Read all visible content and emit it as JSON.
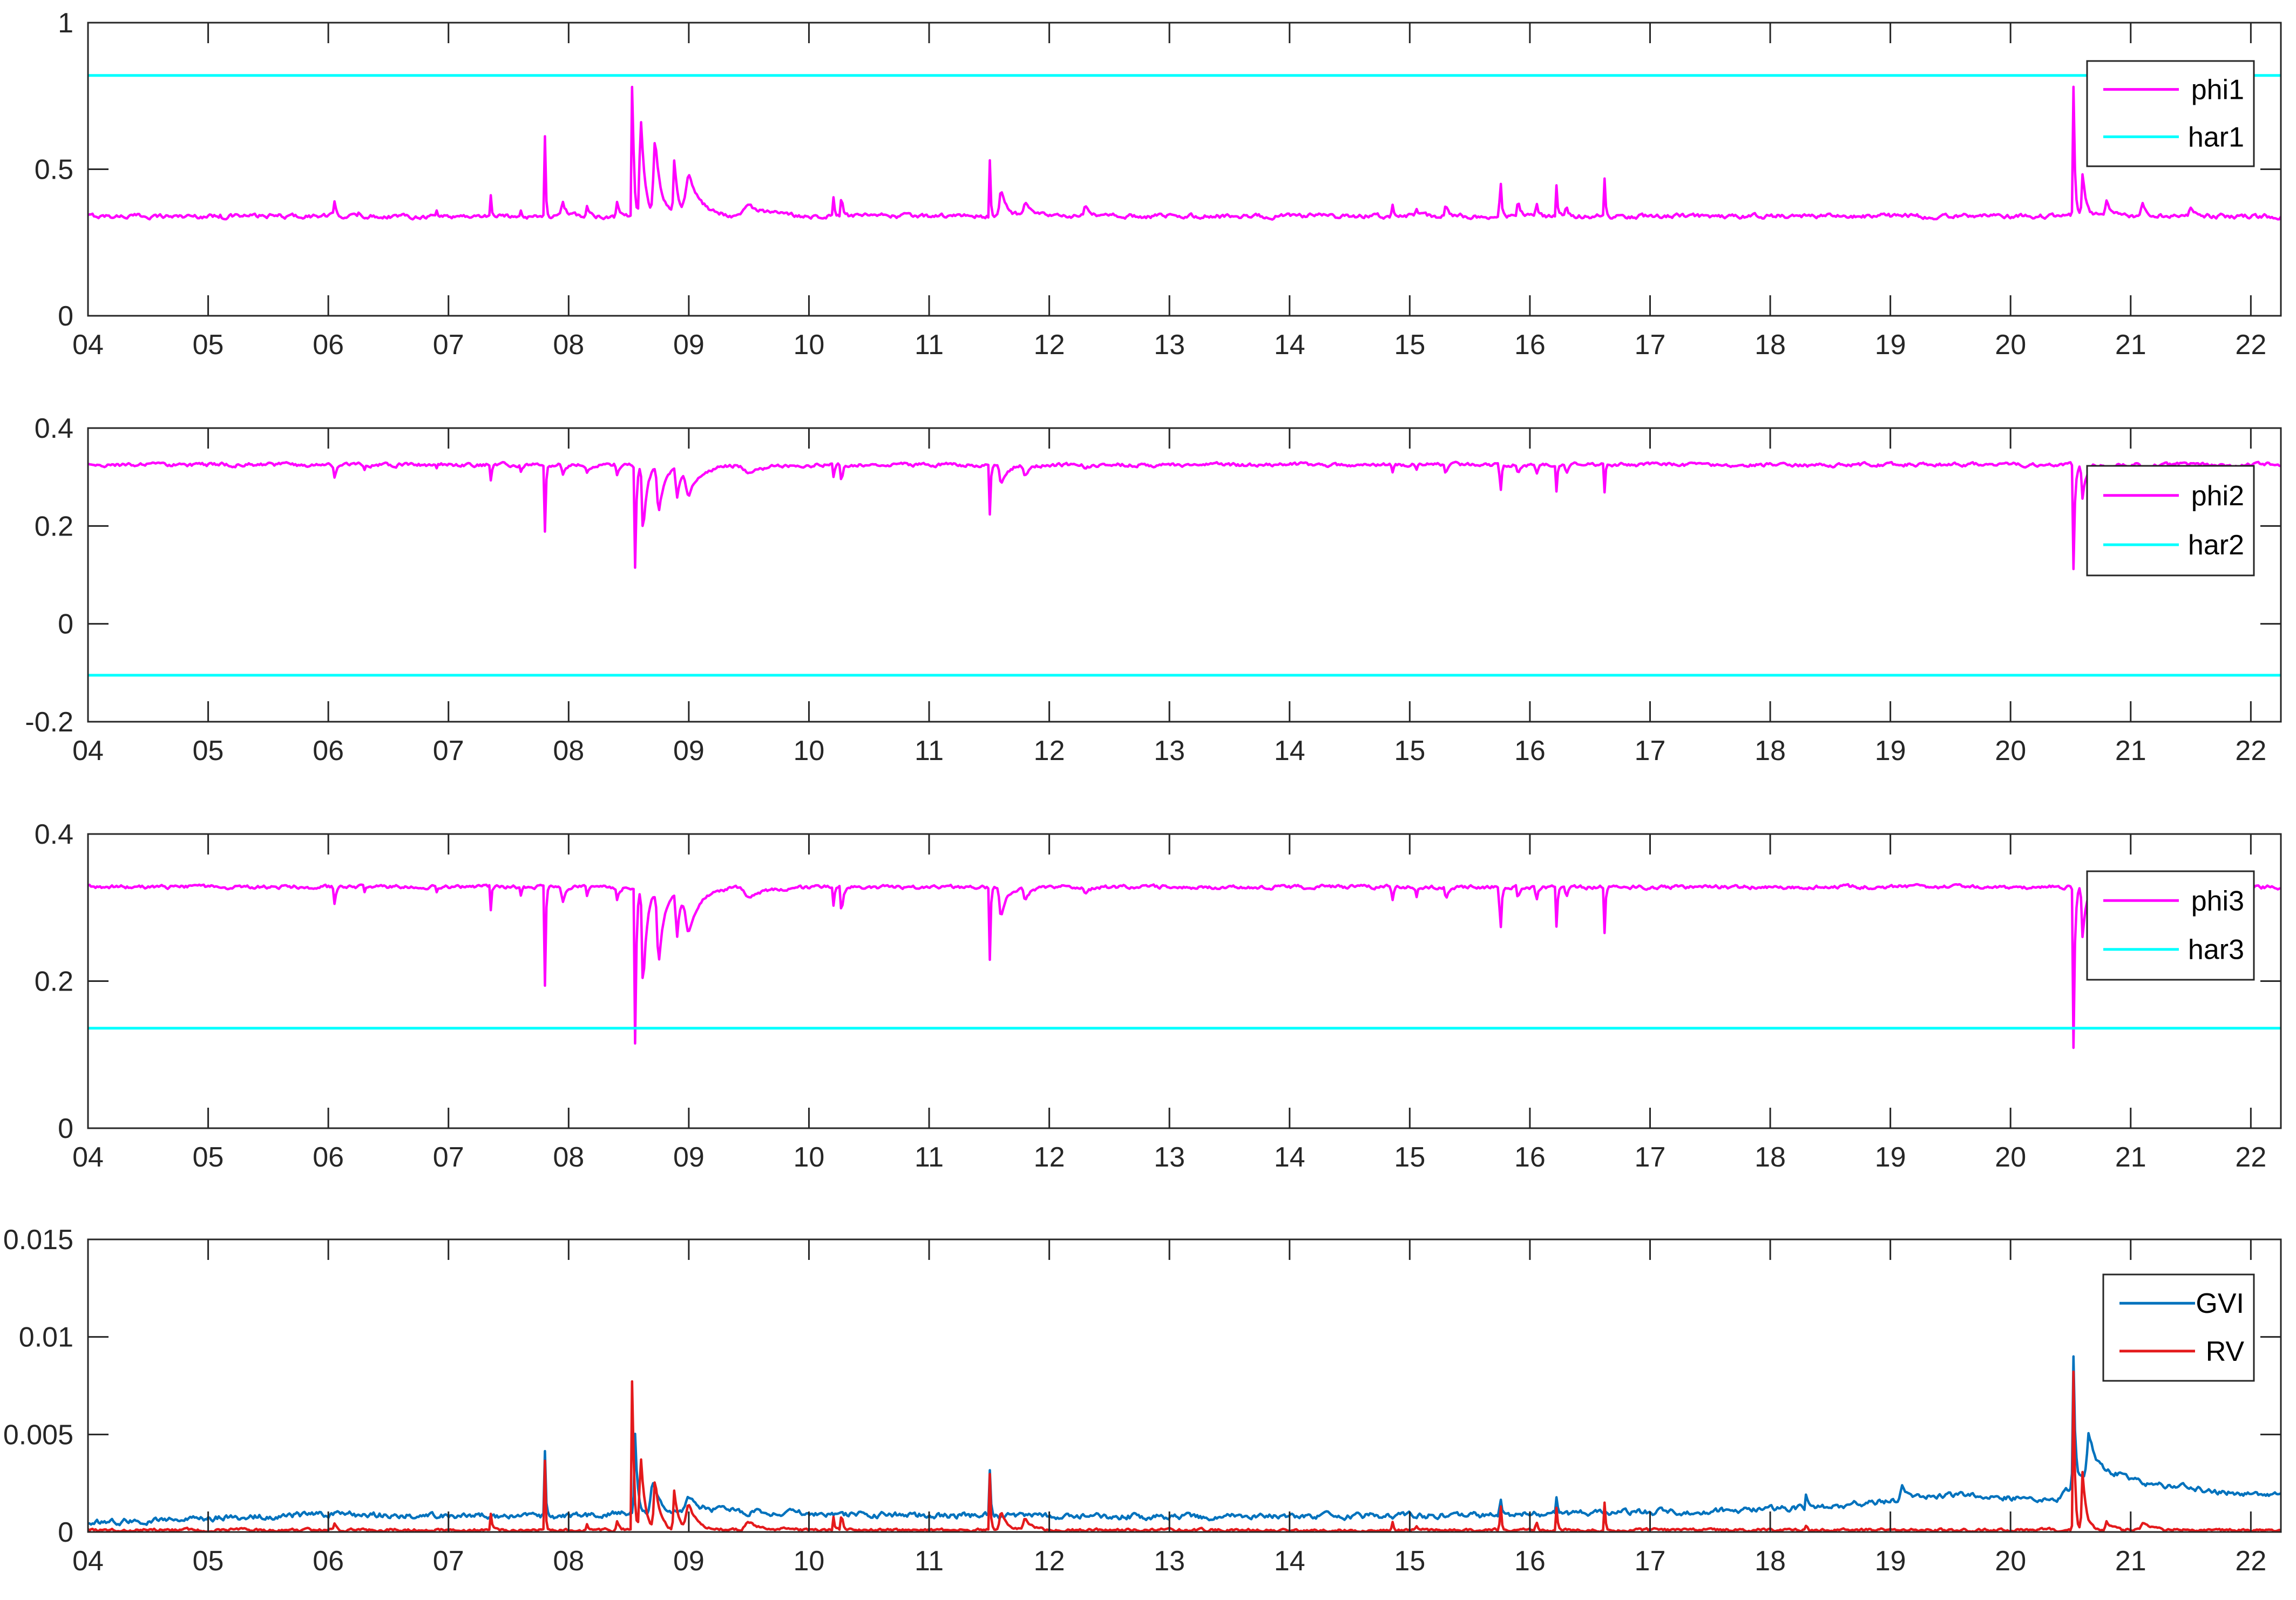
{
  "chart_data": [
    {
      "type": "line",
      "xlim": [
        4,
        22.25
      ],
      "ylim": [
        0,
        1
      ],
      "xticks": [
        "04",
        "05",
        "06",
        "07",
        "08",
        "09",
        "10",
        "11",
        "12",
        "13",
        "14",
        "15",
        "16",
        "17",
        "18",
        "19",
        "20",
        "21",
        "22"
      ],
      "yticks": [
        {
          "v": 0,
          "label": "0"
        },
        {
          "v": 0.5,
          "label": "0.5"
        },
        {
          "v": 1,
          "label": "1"
        }
      ],
      "grid": false,
      "legend_position": "top-right",
      "baseline": 0.34,
      "noise": 0.006,
      "dir": 1,
      "spikes": [
        [
          5.1,
          0.015,
          0.004
        ],
        [
          6.05,
          0.055,
          0.02
        ],
        [
          6.25,
          0.015,
          0.01
        ],
        [
          6.9,
          0.025,
          0.005
        ],
        [
          7.35,
          0.09,
          0.008
        ],
        [
          7.6,
          0.03,
          0.01
        ],
        [
          7.8,
          0.38,
          0.008
        ],
        [
          7.95,
          0.05,
          0.03
        ],
        [
          8.15,
          0.04,
          0.02
        ],
        [
          8.4,
          0.05,
          0.02
        ],
        [
          8.53,
          0.53,
          0.012
        ],
        [
          8.6,
          0.34,
          0.035
        ],
        [
          8.72,
          0.25,
          0.05
        ],
        [
          8.88,
          0.18,
          0.03
        ],
        [
          9.0,
          0.14,
          0.1
        ],
        [
          9.5,
          0.035,
          0.15
        ],
        [
          10.2,
          0.09,
          0.01
        ],
        [
          10.27,
          0.1,
          0.012
        ],
        [
          11.5,
          0.37,
          0.008
        ],
        [
          11.6,
          0.09,
          0.05
        ],
        [
          11.8,
          0.05,
          0.05
        ],
        [
          12.3,
          0.03,
          0.04
        ],
        [
          14.85,
          0.08,
          0.01
        ],
        [
          15.05,
          0.05,
          0.01
        ],
        [
          15.3,
          0.04,
          0.02
        ],
        [
          15.75,
          0.24,
          0.01
        ],
        [
          15.9,
          0.05,
          0.02
        ],
        [
          16.05,
          0.08,
          0.01
        ],
        [
          16.22,
          0.12,
          0.01
        ],
        [
          16.3,
          0.06,
          0.01
        ],
        [
          16.62,
          0.14,
          0.008
        ],
        [
          18.3,
          0.025,
          0.005
        ],
        [
          20.52,
          0.6,
          0.012
        ],
        [
          20.6,
          0.15,
          0.03
        ],
        [
          20.8,
          0.05,
          0.04
        ],
        [
          21.1,
          0.04,
          0.05
        ],
        [
          21.5,
          0.03,
          0.05
        ]
      ],
      "series": [
        {
          "name": "phi1",
          "color": "#ff00ff",
          "kind": "generated"
        },
        {
          "name": "har1",
          "color": "#00ffff",
          "kind": "constant",
          "value": 0.82
        }
      ]
    },
    {
      "type": "line",
      "xlim": [
        4,
        22.25
      ],
      "ylim": [
        -0.2,
        0.4
      ],
      "xticks": [
        "04",
        "05",
        "06",
        "07",
        "08",
        "09",
        "10",
        "11",
        "12",
        "13",
        "14",
        "15",
        "16",
        "17",
        "18",
        "19",
        "20",
        "21",
        "22"
      ],
      "yticks": [
        {
          "v": -0.2,
          "label": "-0.2"
        },
        {
          "v": 0,
          "label": "0"
        },
        {
          "v": 0.2,
          "label": "0.2"
        },
        {
          "v": 0.4,
          "label": "0.4"
        }
      ],
      "grid": false,
      "legend_position": "top-right",
      "baseline": 0.325,
      "noise": 0.003,
      "dir": -1,
      "spikes": [
        [
          6.05,
          0.025,
          0.02
        ],
        [
          6.3,
          0.008,
          0.01
        ],
        [
          6.9,
          0.01,
          0.005
        ],
        [
          7.35,
          0.04,
          0.008
        ],
        [
          7.6,
          0.015,
          0.01
        ],
        [
          7.8,
          0.19,
          0.008
        ],
        [
          7.95,
          0.02,
          0.03
        ],
        [
          8.15,
          0.015,
          0.02
        ],
        [
          8.4,
          0.02,
          0.02
        ],
        [
          8.55,
          0.27,
          0.012
        ],
        [
          8.62,
          0.14,
          0.035
        ],
        [
          8.75,
          0.1,
          0.05
        ],
        [
          8.9,
          0.07,
          0.03
        ],
        [
          9.0,
          0.06,
          0.1
        ],
        [
          9.5,
          0.015,
          0.15
        ],
        [
          10.2,
          0.04,
          0.01
        ],
        [
          10.27,
          0.05,
          0.012
        ],
        [
          11.5,
          0.19,
          0.008
        ],
        [
          11.6,
          0.04,
          0.05
        ],
        [
          11.8,
          0.02,
          0.05
        ],
        [
          12.3,
          0.01,
          0.04
        ],
        [
          14.85,
          0.035,
          0.01
        ],
        [
          15.05,
          0.025,
          0.01
        ],
        [
          15.3,
          0.02,
          0.02
        ],
        [
          15.75,
          0.115,
          0.01
        ],
        [
          15.9,
          0.02,
          0.02
        ],
        [
          16.05,
          0.035,
          0.01
        ],
        [
          16.22,
          0.055,
          0.01
        ],
        [
          16.3,
          0.03,
          0.01
        ],
        [
          16.62,
          0.065,
          0.008
        ],
        [
          18.3,
          0.01,
          0.005
        ],
        [
          20.52,
          0.295,
          0.012
        ],
        [
          20.6,
          0.07,
          0.03
        ],
        [
          20.8,
          0.02,
          0.04
        ],
        [
          21.1,
          0.015,
          0.05
        ]
      ],
      "series": [
        {
          "name": "phi2",
          "color": "#ff00ff",
          "kind": "generated"
        },
        {
          "name": "har2",
          "color": "#00ffff",
          "kind": "constant",
          "value": -0.105
        }
      ]
    },
    {
      "type": "line",
      "xlim": [
        4,
        22.25
      ],
      "ylim": [
        0,
        0.4
      ],
      "xticks": [
        "04",
        "05",
        "06",
        "07",
        "08",
        "09",
        "10",
        "11",
        "12",
        "13",
        "14",
        "15",
        "16",
        "17",
        "18",
        "19",
        "20",
        "21",
        "22"
      ],
      "yticks": [
        {
          "v": 0,
          "label": "0"
        },
        {
          "v": 0.2,
          "label": "0.2"
        },
        {
          "v": 0.4,
          "label": "0.4"
        }
      ],
      "grid": false,
      "legend_position": "top-right",
      "baseline": 0.328,
      "noise": 0.002,
      "dir": -1,
      "spikes": [
        [
          6.05,
          0.025,
          0.02
        ],
        [
          6.3,
          0.008,
          0.01
        ],
        [
          6.9,
          0.01,
          0.005
        ],
        [
          7.35,
          0.045,
          0.008
        ],
        [
          7.6,
          0.015,
          0.01
        ],
        [
          7.8,
          0.19,
          0.008
        ],
        [
          7.95,
          0.02,
          0.03
        ],
        [
          8.15,
          0.015,
          0.02
        ],
        [
          8.4,
          0.02,
          0.02
        ],
        [
          8.55,
          0.275,
          0.012
        ],
        [
          8.62,
          0.14,
          0.035
        ],
        [
          8.75,
          0.1,
          0.05
        ],
        [
          8.9,
          0.07,
          0.03
        ],
        [
          9.0,
          0.06,
          0.1
        ],
        [
          9.5,
          0.015,
          0.15
        ],
        [
          10.2,
          0.04,
          0.01
        ],
        [
          10.27,
          0.05,
          0.012
        ],
        [
          11.5,
          0.19,
          0.008
        ],
        [
          11.6,
          0.04,
          0.05
        ],
        [
          11.8,
          0.02,
          0.05
        ],
        [
          12.3,
          0.01,
          0.04
        ],
        [
          14.85,
          0.04,
          0.01
        ],
        [
          15.05,
          0.03,
          0.01
        ],
        [
          15.3,
          0.02,
          0.02
        ],
        [
          15.75,
          0.12,
          0.01
        ],
        [
          15.9,
          0.02,
          0.02
        ],
        [
          16.05,
          0.035,
          0.01
        ],
        [
          16.22,
          0.06,
          0.01
        ],
        [
          16.3,
          0.03,
          0.01
        ],
        [
          16.62,
          0.07,
          0.008
        ],
        [
          18.3,
          0.01,
          0.005
        ],
        [
          20.52,
          0.3,
          0.012
        ],
        [
          20.6,
          0.07,
          0.03
        ],
        [
          20.8,
          0.02,
          0.04
        ],
        [
          21.1,
          0.015,
          0.05
        ]
      ],
      "series": [
        {
          "name": "phi3",
          "color": "#ff00ff",
          "kind": "generated"
        },
        {
          "name": "har3",
          "color": "#00ffff",
          "kind": "constant",
          "value": 0.136
        }
      ]
    },
    {
      "type": "line",
      "xlim": [
        4,
        22.25
      ],
      "ylim": [
        0,
        0.015
      ],
      "xticks": [
        "04",
        "05",
        "06",
        "07",
        "08",
        "09",
        "10",
        "11",
        "12",
        "13",
        "14",
        "15",
        "16",
        "17",
        "18",
        "19",
        "20",
        "21",
        "22"
      ],
      "yticks": [
        {
          "v": 0,
          "label": "0"
        },
        {
          "v": 0.005,
          "label": "0.005"
        },
        {
          "v": 0.01,
          "label": "0.01"
        },
        {
          "v": 0.015,
          "label": "0.015"
        }
      ],
      "grid": false,
      "legend_position": "top-right",
      "series": [
        {
          "name": "GVI",
          "color": "#0072bd",
          "kind": "generated",
          "baseline_pts": [
            [
              4,
              0.0005
            ],
            [
              6,
              0.0009
            ],
            [
              8,
              0.0008
            ],
            [
              9,
              0.0011
            ],
            [
              10.5,
              0.0009
            ],
            [
              12,
              0.0008
            ],
            [
              14,
              0.0008
            ],
            [
              16,
              0.0009
            ],
            [
              17.5,
              0.0011
            ],
            [
              18.5,
              0.0013
            ],
            [
              19,
              0.0016
            ],
            [
              19.5,
              0.0019
            ],
            [
              20.4,
              0.0017
            ],
            [
              20.7,
              0.0033
            ],
            [
              21.2,
              0.0024
            ],
            [
              22.25,
              0.0018
            ]
          ],
          "noise": 0.00012,
          "dir": 1,
          "spikes": [
            [
              7.8,
              0.0045,
              0.008
            ],
            [
              8.55,
              0.0048,
              0.02
            ],
            [
              8.7,
              0.0015,
              0.06
            ],
            [
              9.0,
              0.0006,
              0.1
            ],
            [
              11.5,
              0.004,
              0.01
            ],
            [
              15.75,
              0.0018,
              0.01
            ],
            [
              16.22,
              0.0008,
              0.01
            ],
            [
              18.3,
              0.0012,
              0.01
            ],
            [
              19.1,
              0.0008,
              0.05
            ],
            [
              20.52,
              0.0085,
              0.015
            ],
            [
              20.65,
              0.002,
              0.05
            ]
          ]
        },
        {
          "name": "RV",
          "color": "#e41a1c",
          "kind": "generated",
          "baseline": 0.0001,
          "noise": 6e-05,
          "floor": 0,
          "dir": 1,
          "spikes": [
            [
              6.05,
              0.0003,
              0.02
            ],
            [
              7.35,
              0.001,
              0.01
            ],
            [
              7.8,
              0.0055,
              0.006
            ],
            [
              8.15,
              0.0003,
              0.02
            ],
            [
              8.4,
              0.0005,
              0.02
            ],
            [
              8.53,
              0.0093,
              0.012
            ],
            [
              8.6,
              0.004,
              0.035
            ],
            [
              8.72,
              0.0025,
              0.04
            ],
            [
              8.88,
              0.002,
              0.03
            ],
            [
              9.0,
              0.0012,
              0.08
            ],
            [
              9.5,
              0.0004,
              0.12
            ],
            [
              10.2,
              0.001,
              0.01
            ],
            [
              10.27,
              0.0012,
              0.012
            ],
            [
              11.5,
              0.0055,
              0.008
            ],
            [
              11.6,
              0.001,
              0.05
            ],
            [
              11.8,
              0.0006,
              0.05
            ],
            [
              14.85,
              0.0008,
              0.01
            ],
            [
              15.05,
              0.0005,
              0.01
            ],
            [
              15.75,
              0.0034,
              0.008
            ],
            [
              16.05,
              0.0008,
              0.01
            ],
            [
              16.22,
              0.0012,
              0.01
            ],
            [
              16.62,
              0.0016,
              0.008
            ],
            [
              18.3,
              0.0004,
              0.01
            ],
            [
              20.52,
              0.0112,
              0.012
            ],
            [
              20.6,
              0.003,
              0.03
            ],
            [
              20.8,
              0.0005,
              0.04
            ],
            [
              21.1,
              0.0004,
              0.05
            ]
          ]
        }
      ]
    }
  ]
}
